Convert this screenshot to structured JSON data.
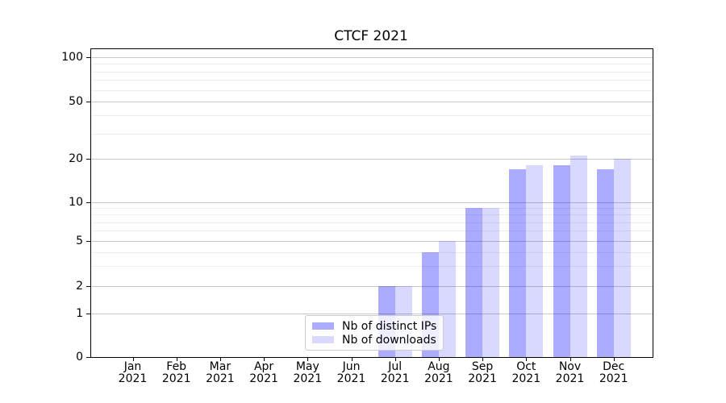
{
  "title": "CTCF 2021",
  "chart_data": {
    "type": "bar",
    "title": "CTCF 2021",
    "categories": [
      "Jan 2021",
      "Feb 2021",
      "Mar 2021",
      "Apr 2021",
      "May 2021",
      "Jun 2021",
      "Jul 2021",
      "Aug 2021",
      "Sep 2021",
      "Oct 2021",
      "Nov 2021",
      "Dec 2021"
    ],
    "x_tick_months": [
      "Jan",
      "Feb",
      "Mar",
      "Apr",
      "May",
      "Jun",
      "Jul",
      "Aug",
      "Sep",
      "Oct",
      "Nov",
      "Dec"
    ],
    "x_tick_year": "2021",
    "series": [
      {
        "name": "Nb of distinct IPs",
        "color": "rgba(0,0,255,0.33)",
        "values": [
          0,
          0,
          0,
          0,
          0,
          0,
          2,
          4,
          9,
          17,
          18,
          17
        ]
      },
      {
        "name": "Nb of downloads",
        "color": "rgba(0,0,255,0.15)",
        "values": [
          0,
          0,
          0,
          0,
          0,
          0,
          2,
          5,
          9,
          18,
          21,
          20
        ]
      }
    ],
    "yticks": [
      0,
      1,
      2,
      5,
      10,
      20,
      50,
      100
    ],
    "yscale": "log-like with 0 baseline",
    "ylim": [
      0,
      125
    ],
    "grid": "horizontal major and minor gridlines",
    "legend_position": "inside axes, lower center-left"
  }
}
